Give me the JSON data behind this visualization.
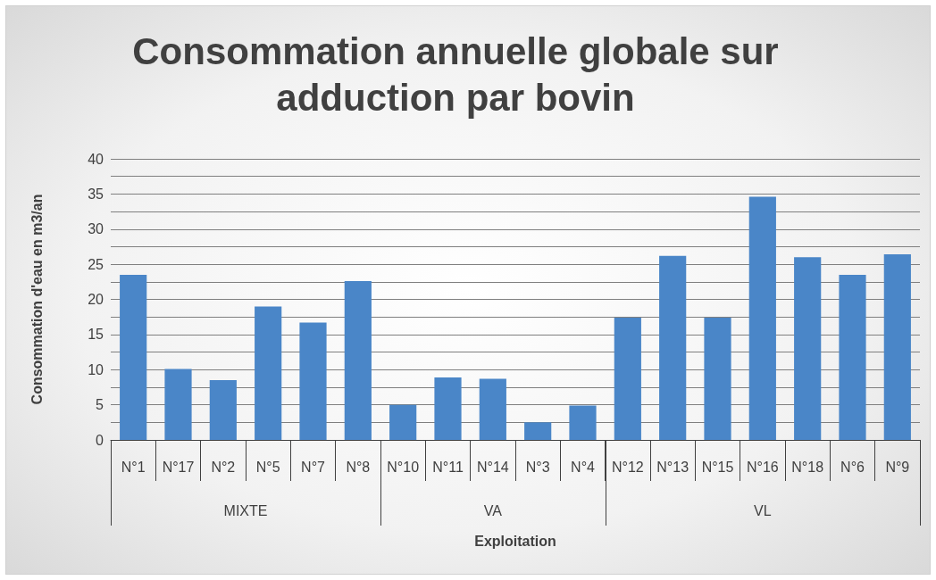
{
  "chart_data": {
    "type": "bar",
    "title": "Consommation annuelle globale sur adduction par bovin",
    "xlabel": "Exploitation",
    "ylabel": "Consommation d'eau en m3/an",
    "categories": [
      "N°1",
      "N°17",
      "N°2",
      "N°5",
      "N°7",
      "N°8",
      "N°10",
      "N°11",
      "N°14",
      "N°3",
      "N°4",
      "N°12",
      "N°13",
      "N°15",
      "N°16",
      "N°18",
      "N°6",
      "N°9"
    ],
    "values": [
      23.5,
      10.1,
      8.5,
      19,
      16.7,
      22.6,
      5,
      8.9,
      8.7,
      2.5,
      4.9,
      17.4,
      26.2,
      17.4,
      34.6,
      26,
      23.5,
      26.4
    ],
    "color": "#4a86c8",
    "annotations": [
      "MIXTE",
      "VA",
      "VL"
    ],
    "ylim": [
      0,
      40
    ],
    "yticks": [
      0,
      {
        "value": 2.5,
        "label": null
      },
      5,
      {
        "value": 7.5,
        "label": null
      },
      10,
      {
        "value": 12.5,
        "label": null
      },
      15,
      {
        "value": 17.5,
        "label": null
      },
      20,
      {
        "value": 22.5,
        "label": null
      },
      25,
      {
        "value": 27.5,
        "label": null
      },
      30,
      {
        "value": 32.5,
        "label": null
      },
      35,
      {
        "value": 37.5,
        "label": null
      },
      40
    ],
    "grid": true
  }
}
